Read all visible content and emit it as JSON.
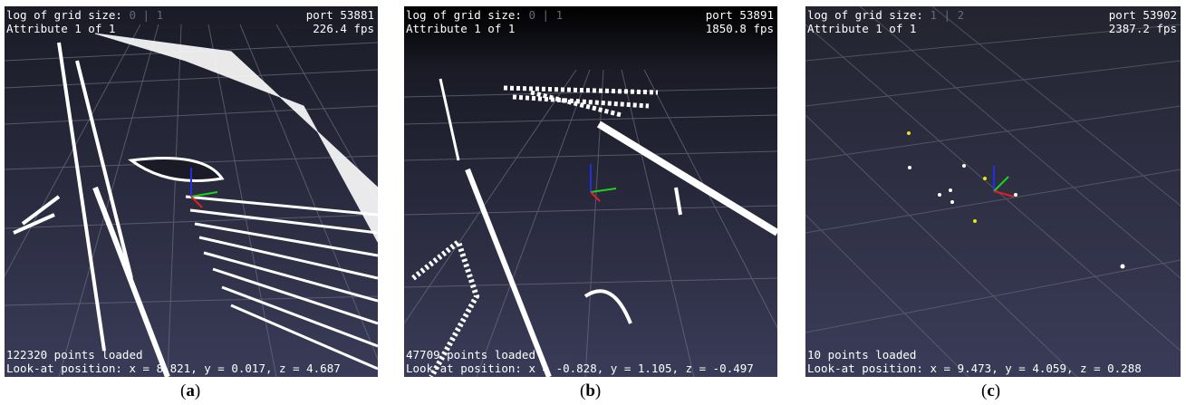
{
  "panels": [
    {
      "id": "a",
      "grid_label": "log of grid size:",
      "grid_values": [
        "0",
        "1"
      ],
      "attribute": "Attribute 1 of 1",
      "port": "port 53881",
      "fps": "226.4 fps",
      "points_loaded": "122320 points loaded",
      "look_at": "Look-at position: x = 8.821, y = 0.017, z = 4.687",
      "caption": "a"
    },
    {
      "id": "b",
      "grid_label": "log of grid size:",
      "grid_values": [
        "0",
        "1"
      ],
      "attribute": "Attribute 1 of 1",
      "port": "port 53891",
      "fps": "1850.8 fps",
      "points_loaded": "47709 points loaded",
      "look_at": "Look-at position: x = -0.828, y = 1.105, z = -0.497",
      "caption": "b"
    },
    {
      "id": "c",
      "grid_label": "log of grid size:",
      "grid_values": [
        "1",
        "2"
      ],
      "attribute": "Attribute 1 of 1",
      "port": "port 53902",
      "fps": "2387.2 fps",
      "points_loaded": "10 points loaded",
      "look_at": "Look-at position: x = 9.473, y = 4.059, z = 0.288",
      "caption": "c"
    }
  ],
  "colors": {
    "background_top": "#1a1b26",
    "background_bottom": "#3a3b58",
    "grid": "#7a7c8c",
    "points": "#ffffff",
    "highlight_points": "#f0e020",
    "axis_x": "#e02020",
    "axis_y": "#20d020",
    "axis_z": "#2030e0"
  }
}
